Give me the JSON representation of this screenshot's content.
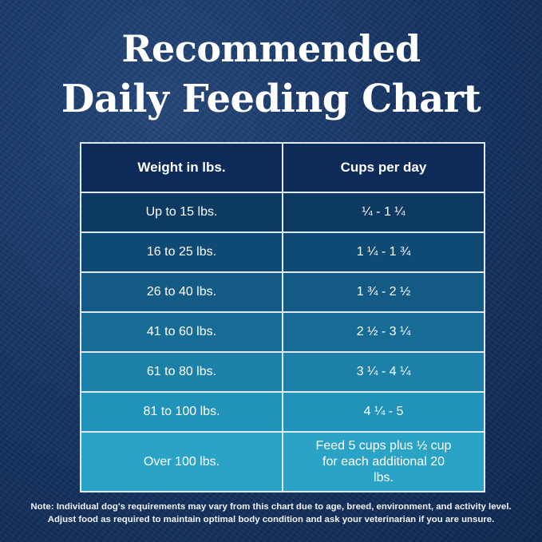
{
  "title": {
    "line1": "Recommended",
    "line2": "Daily Feeding Chart"
  },
  "chart_data": {
    "type": "table",
    "columns": [
      "Weight in lbs.",
      "Cups per day"
    ],
    "rows": [
      [
        "Up to 15 lbs.",
        "¼  - 1 ¼"
      ],
      [
        "16 to 25 lbs.",
        "1 ¼ - 1 ¾"
      ],
      [
        "26 to 40 lbs.",
        "1 ¾  - 2 ½"
      ],
      [
        "41 to 60 lbs.",
        "2 ½ - 3 ¼"
      ],
      [
        "61 to 80 lbs.",
        "3 ¼ - 4 ¼"
      ],
      [
        "81 to 100 lbs.",
        "4 ¼  - 5"
      ],
      [
        "Over 100 lbs.",
        "Feed 5 cups plus ½ cup for each additional 20 lbs."
      ]
    ],
    "row_colors": [
      "#0c3a63",
      "#0f4a74",
      "#135a84",
      "#176c96",
      "#1c80a9",
      "#2192b9",
      "#2aa3c6"
    ],
    "header_color": "#0d2a58"
  },
  "note": {
    "line1": "Note: Individual dog's requirements may vary from this chart due to age, breed, environment, and activity level.",
    "line2": "Adjust food as required to maintain optimal body condition and ask your veterinarian if you are unsure."
  }
}
